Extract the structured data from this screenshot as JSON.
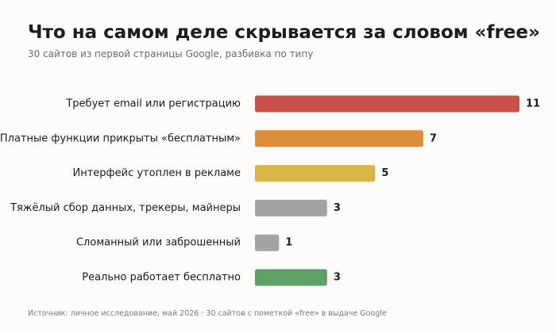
{
  "header": {
    "title": "Что на самом деле скрывается за словом «free»",
    "subtitle": "30 сайтов из первой страницы Google, разбивка по типу"
  },
  "footer": {
    "source": "Источник: личное исследование, май 2026 · 30 сайтов с пометкой «free» в выдаче Google"
  },
  "chart_data": {
    "type": "bar",
    "orientation": "horizontal",
    "title": "Что на самом деле скрывается за словом «free»",
    "subtitle": "30 сайтов из первой страницы Google, разбивка по типу",
    "categories": [
      "Требует email или регистрацию",
      "Платные функции прикрыты «бесплатным»",
      "Интерфейс утоплен в рекламе",
      "Тяжёлый сбор данных, трекеры, майнеры",
      "Сломанный или заброшенный",
      "Реально работает бесплатно"
    ],
    "values": [
      11,
      7,
      5,
      3,
      1,
      3
    ],
    "colors": [
      "#c9504a",
      "#de8f3c",
      "#d8b545",
      "#a3a3a3",
      "#a3a3a3",
      "#5ca066"
    ],
    "data_labels": [
      "11",
      "7",
      "5",
      "3",
      "1",
      "3"
    ],
    "xlim": [
      0,
      11
    ],
    "grid": false,
    "legend": "none",
    "xlabel": "",
    "ylabel": ""
  }
}
